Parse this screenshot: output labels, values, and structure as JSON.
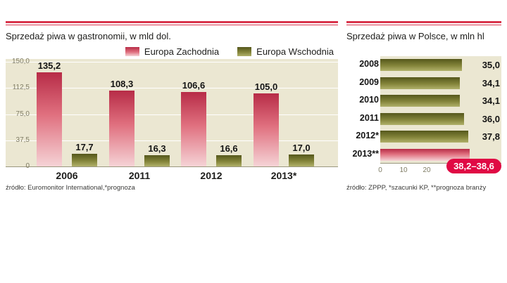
{
  "chart_data": [
    {
      "type": "bar",
      "title": "Sprzedaż piwa w gastronomii, w mld dol.",
      "source": "źródło: Euromonitor International,*prognoza",
      "categories": [
        "2006",
        "2011",
        "2012",
        "2013*"
      ],
      "series": [
        {
          "name": "Europa Zachodnia",
          "values": [
            135.2,
            108.3,
            106.6,
            105.0
          ],
          "labels": [
            "135,2",
            "108,3",
            "106,6",
            "105,0"
          ]
        },
        {
          "name": "Europa Wschodnia",
          "values": [
            17.7,
            16.3,
            16.6,
            17.0
          ],
          "labels": [
            "17,7",
            "16,3",
            "16,6",
            "17,0"
          ]
        }
      ],
      "y_ticks": [
        {
          "value": 150,
          "label": "150,0"
        },
        {
          "value": 112.5,
          "label": "112,5"
        },
        {
          "value": 75,
          "label": "75,0"
        },
        {
          "value": 37.5,
          "label": "37,5"
        },
        {
          "value": 0,
          "label": "0"
        }
      ],
      "ylim": [
        0,
        150
      ],
      "legend_position": "top"
    },
    {
      "type": "bar-horizontal",
      "title": "Sprzedaż piwa w Polsce, w mln hl",
      "source": "źródło: ZPPP, *szacunki KP, **prognoza branży",
      "categories": [
        "2008",
        "2009",
        "2010",
        "2011",
        "2012*",
        "2013**"
      ],
      "values": [
        35.0,
        34.1,
        34.1,
        36.0,
        37.8,
        38.4
      ],
      "labels": [
        "35,0",
        "34,1",
        "34,1",
        "36,0",
        "37,8",
        "38,2–38,6"
      ],
      "highlight_index": 5,
      "x_ticks": [
        {
          "value": 0,
          "label": "0"
        },
        {
          "value": 10,
          "label": "10"
        },
        {
          "value": 20,
          "label": "20"
        }
      ],
      "xlim": [
        0,
        40
      ]
    }
  ],
  "colors": {
    "rule_red": "#d8354d",
    "plot_bg": "#ebe7d2",
    "bar_red_top": "#b72c47",
    "bar_red_mid": "#e0707f",
    "bar_red_bottom": "#f5d3d6",
    "bar_olive_top": "#55571c",
    "bar_olive_mid": "#83843a",
    "bar_olive_bottom": "#b0b06a",
    "badge_red": "#e00a44"
  }
}
